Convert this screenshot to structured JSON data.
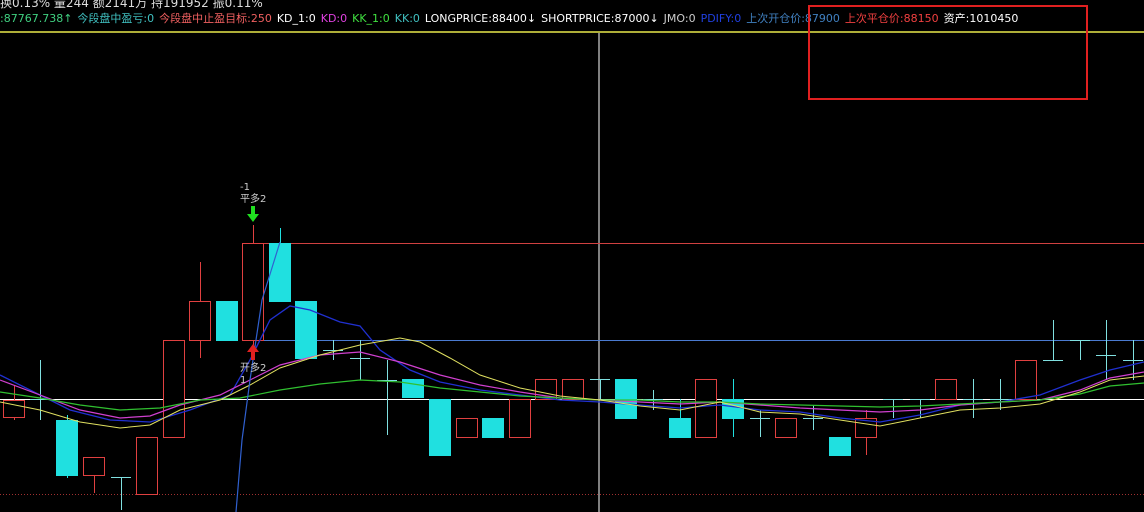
{
  "header": {
    "stats": "换0.13% 量244 额2141万 持191952 振0.11%",
    "indicators": [
      ":87767.738↑",
      "今段盘中盈亏:0",
      "今段盘中止盈目标:250",
      "KD_1:0",
      "KD:0",
      "KK_1:0",
      "KK:0",
      "LONGPRICE:88400↓",
      "SHORTPRICE:87000↓",
      "JMO:0",
      "PDIFY:0",
      "上次开仓价:87900",
      "上次平仓价:88150",
      "资产:1010450"
    ]
  },
  "annotations": {
    "sell_count": "-1",
    "sell_label": "平多2",
    "buy_label": "开多2",
    "buy_count": "1"
  }
}
